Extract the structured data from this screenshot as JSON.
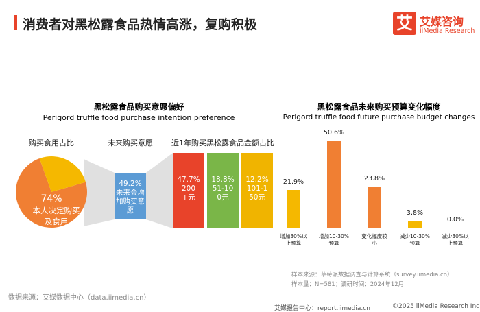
{
  "header": {
    "title": "消费者对黑松露食品热情高涨，复购积极",
    "logo_icon": "艾",
    "logo_cn": "艾媒咨询",
    "logo_en": "iiMedia Research"
  },
  "chart_data": [
    {
      "type": "pie-flow",
      "title": "黑松露食品购买意愿偏好",
      "subtitle": "Perigord truffle food purchase intention preference",
      "pie": {
        "title": "购买食用占比",
        "categories": [
          "本人决定购买及食用",
          null
        ],
        "values": [
          74,
          26
        ],
        "value_labels": [
          "74%",
          null
        ],
        "colors": [
          "#f07f33",
          "#f5b800"
        ]
      },
      "intent": {
        "title": "未来购买意愿",
        "category": "未来会增加购买意愿",
        "value": 49.2,
        "value_label": "49.2%",
        "color": "#5b9bd5"
      },
      "spend": {
        "title": "近1年购买黑松露食品金额占比",
        "categories": [
          "200+元",
          "51-100元",
          "101-150元"
        ],
        "values": [
          47.7,
          18.8,
          12.2
        ],
        "value_labels": [
          "47.7%",
          "18.8%",
          "12.2%"
        ],
        "colors": [
          "#e8432a",
          "#7ab648",
          "#f0b400"
        ]
      }
    },
    {
      "type": "bar",
      "title": "黑松露食品未来购买预算变化幅度",
      "subtitle": "Perigord truffle food future purchase budget changes",
      "categories": [
        "增加30%以上预算",
        "增加10-30%预算",
        "变化幅度较小",
        "减少10-30%预算",
        "减少30%以上预算"
      ],
      "values": [
        21.9,
        50.6,
        23.8,
        3.8,
        0.0
      ],
      "value_labels": [
        "21.9%",
        "50.6%",
        "23.8%",
        "3.8%",
        "0.0%"
      ],
      "colors": [
        "#f5b800",
        "#f07f33",
        "#f07f33",
        "#f5b800",
        "#f07f33"
      ]
    }
  ],
  "footer": {
    "source": "数据来源：艾媒数据中心（data.iimedia.cn）",
    "sample_source": "样本来源：草莓派数据调查与计算系统（survey.iimedia.cn）",
    "sample_info": "样本量：N=581；调研时间：2024年12月",
    "report": "艾媒报告中心：report.iimedia.cn",
    "copyright": "©2025  iiMedia Research  Inc"
  }
}
